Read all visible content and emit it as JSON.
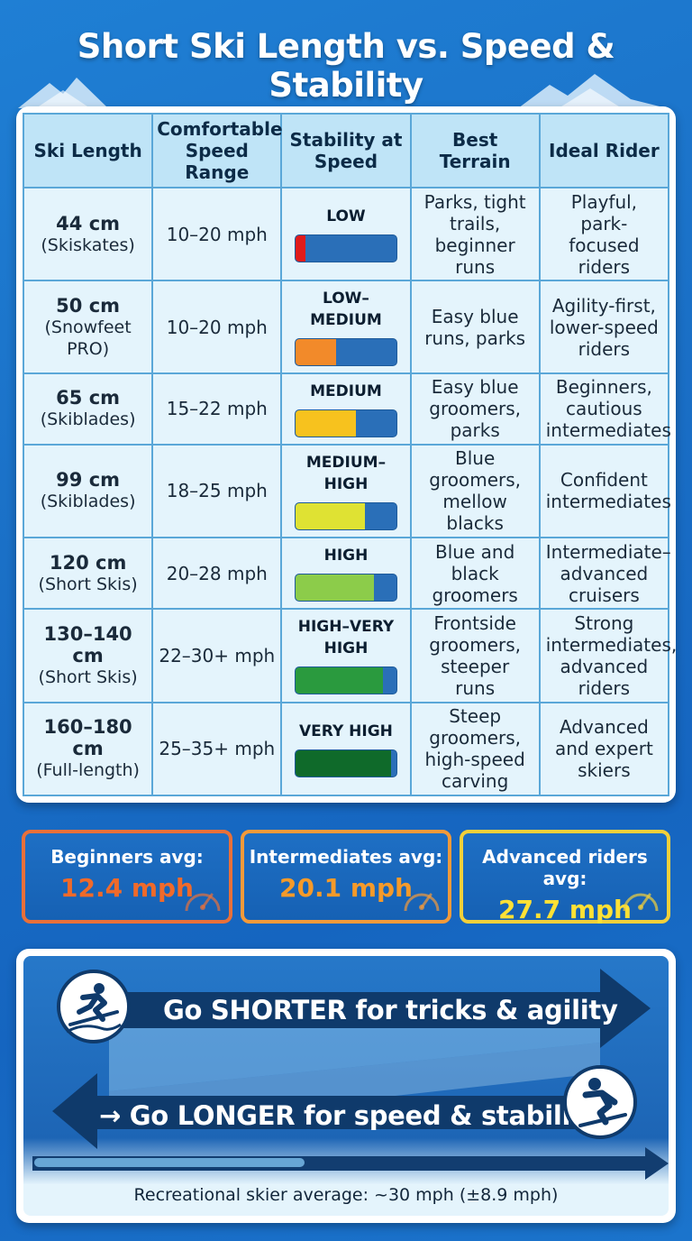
{
  "title": "Short Ski Length vs. Speed & Stability",
  "table": {
    "headers": {
      "length": "Ski Length",
      "speed": "Comfortable Speed Range",
      "stability": "Stability at Speed",
      "terrain": "Best Terrain",
      "rider": "Ideal Rider"
    },
    "rows": [
      {
        "length": "44 cm",
        "type": "(Skiskates)",
        "speed": "10–20 mph",
        "stability": "LOW",
        "stability_level": 0.1,
        "color": "#e01b1b",
        "terrain": "Parks, tight trails, beginner runs",
        "rider": "Playful, park-focused riders"
      },
      {
        "length": "50 cm",
        "type": "(Snowfeet PRO)",
        "speed": "10–20 mph",
        "stability": "LOW–MEDIUM",
        "stability_level": 0.4,
        "color": "#f28a2a",
        "terrain": "Easy blue runs, parks",
        "rider": "Agility-first, lower-speed riders"
      },
      {
        "length": "65 cm",
        "type": "(Skiblades)",
        "speed": "15–22 mph",
        "stability": "MEDIUM",
        "stability_level": 0.6,
        "color": "#f7c21e",
        "terrain": "Easy blue groomers, parks",
        "rider": "Beginners, cautious intermediates"
      },
      {
        "length": "99 cm",
        "type": "(Skiblades)",
        "speed": "18–25 mph",
        "stability": "MEDIUM–HIGH",
        "stability_level": 0.69,
        "color": "#dfe233",
        "terrain": "Blue groomers, mellow blacks",
        "rider": "Confident intermediates"
      },
      {
        "length": "120 cm",
        "type": "(Short Skis)",
        "speed": "20–28 mph",
        "stability": "HIGH",
        "stability_level": 0.78,
        "color": "#8ccc4a",
        "terrain": "Blue and black groomers",
        "rider": "Intermediate–advanced cruisers"
      },
      {
        "length": "130–140 cm",
        "type": "(Short Skis)",
        "speed": "22–30+ mph",
        "stability": "HIGH–VERY HIGH",
        "stability_level": 0.87,
        "color": "#2a9a3e",
        "terrain": "Frontside groomers, steeper runs",
        "rider": "Strong intermediates, advanced riders"
      },
      {
        "length": "160–180 cm",
        "type": "(Full-length)",
        "speed": "25–35+ mph",
        "stability": "VERY HIGH",
        "stability_level": 0.95,
        "color": "#0f6a2a",
        "terrain": "Steep groomers, high-speed carving",
        "rider": "Advanced and expert skiers"
      }
    ]
  },
  "averages": [
    {
      "label": "Beginners avg:",
      "value": "12.4 mph",
      "color": "#f06a2a",
      "border": "#e8703a"
    },
    {
      "label": "Intermediates avg:",
      "value": "20.1 mph",
      "color": "#f59a2a",
      "border": "#f39a3a"
    },
    {
      "label": "Advanced riders avg:",
      "value": "27.7 mph",
      "color": "#ffe135",
      "border": "#f2d03a"
    }
  ],
  "bottom": {
    "shorter": "Go SHORTER for tricks & agility",
    "longer": "→ Go LONGER for speed & stability",
    "recreational": "Recreational skier average: ~30 mph (±8.9 mph)",
    "shorter_icon": "freestyle-skier-icon",
    "longer_icon": "downhill-skier-icon"
  }
}
